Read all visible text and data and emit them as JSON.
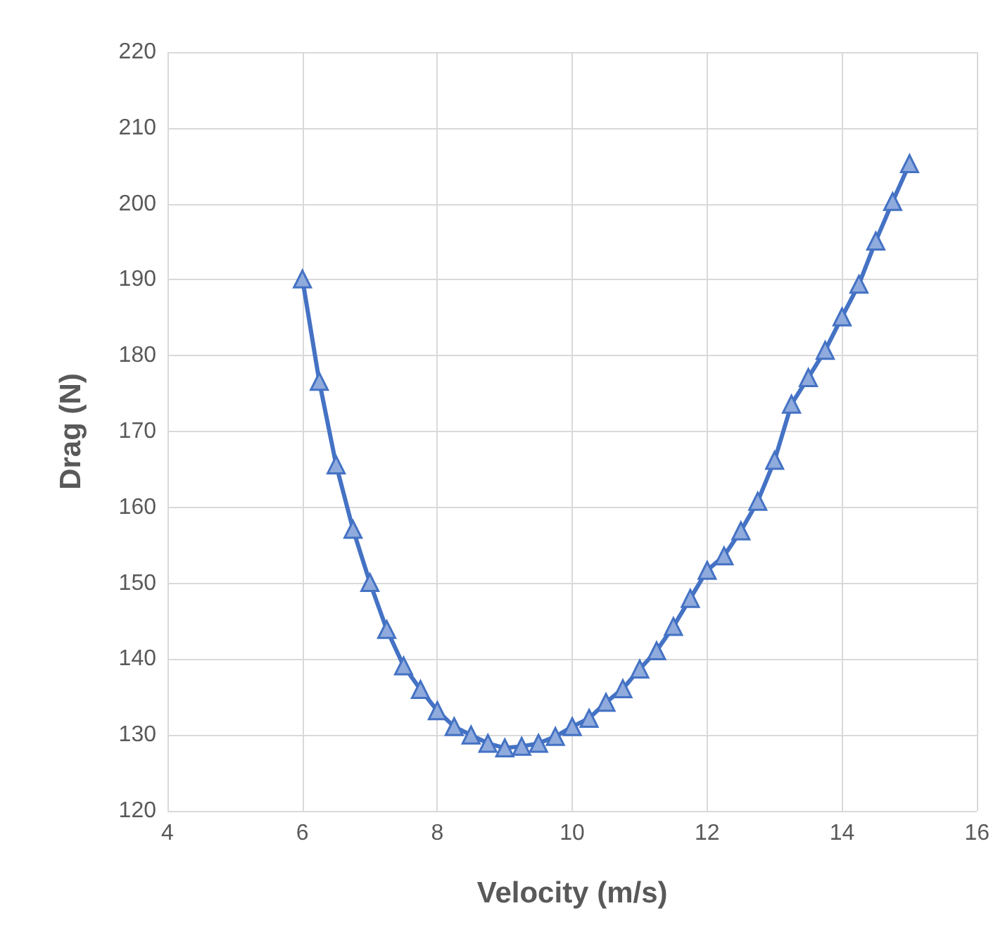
{
  "chart_data": {
    "type": "line",
    "xlabel": "Velocity (m/s)",
    "ylabel": "Drag (N)",
    "x": [
      6,
      6.25,
      6.5,
      6.75,
      7,
      7.25,
      7.5,
      7.75,
      8,
      8.25,
      8.5,
      8.75,
      9,
      9.25,
      9.5,
      9.75,
      10,
      10.25,
      10.5,
      10.75,
      11,
      11.25,
      11.5,
      11.75,
      12,
      12.25,
      12.5,
      12.75,
      13,
      13.25,
      13.5,
      13.75,
      14,
      14.25,
      14.5,
      14.75,
      15
    ],
    "series": [
      {
        "color": "#4472c4",
        "values": [
          190.1,
          176.6,
          165.6,
          157.1,
          150.1,
          143.9,
          139.1,
          136,
          133.2,
          131.1,
          130,
          128.9,
          128.3,
          128.5,
          128.9,
          129.8,
          131.1,
          132.2,
          134.3,
          136.1,
          138.7,
          141.1,
          144.3,
          148,
          151.7,
          153.6,
          156.9,
          160.8,
          166.2,
          173.6,
          177.1,
          180.7,
          185.1,
          189.4,
          195.1,
          200.3,
          205.3
        ]
      }
    ],
    "xlim": [
      4,
      16
    ],
    "xticks": [
      4,
      6,
      8,
      10,
      12,
      14,
      16
    ],
    "ylim": [
      120,
      220
    ],
    "yticks": [
      120,
      130,
      140,
      150,
      160,
      170,
      180,
      190,
      200,
      210,
      220
    ],
    "grid": true,
    "marker": "triangle",
    "line_style": "solid"
  }
}
